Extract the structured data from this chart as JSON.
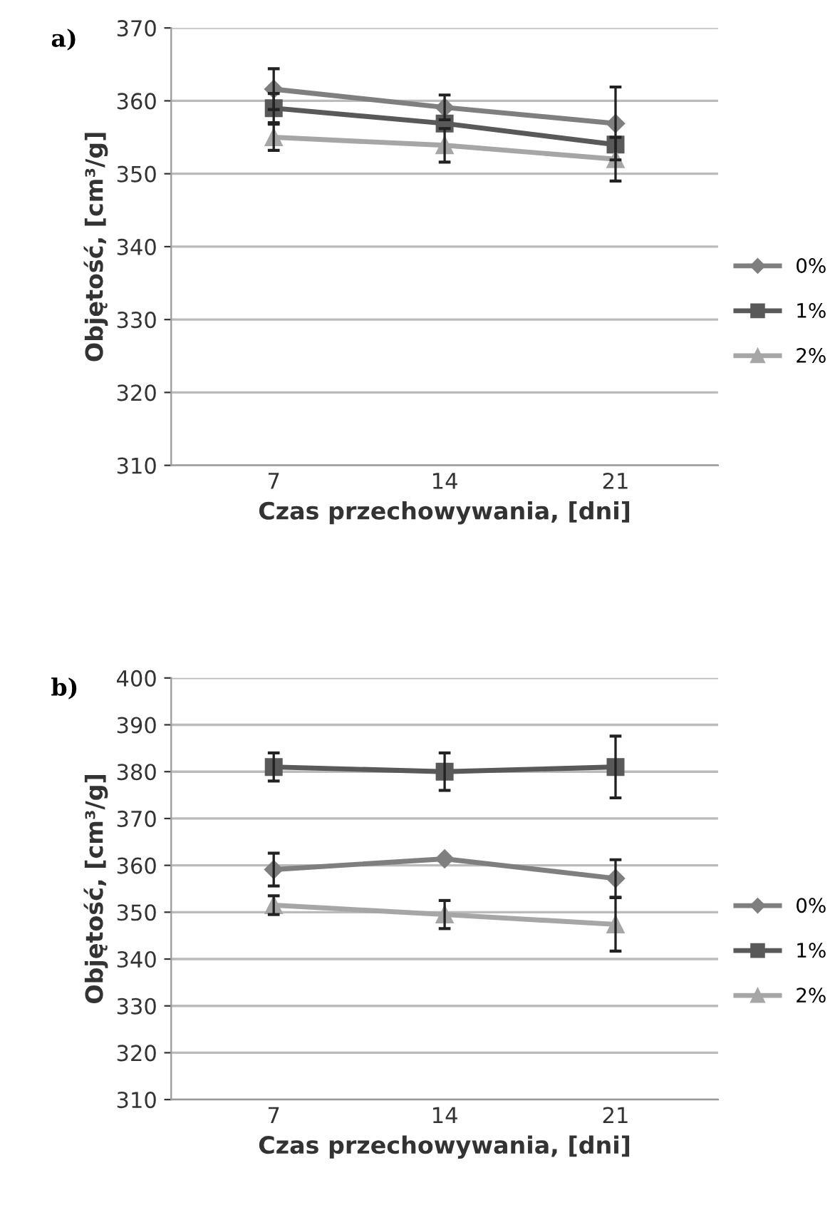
{
  "chart_data": [
    {
      "type": "line",
      "title": "a)",
      "xlabel": "Czas przechowywania, [dni]",
      "ylabel": "Objętość, [cm³/g]",
      "categories": [
        "7",
        "14",
        "21"
      ],
      "ylim": [
        310,
        370
      ],
      "yticks": [
        310,
        320,
        330,
        340,
        350,
        360,
        370
      ],
      "grid": "y",
      "legend": "right",
      "line_style": "solid",
      "series": [
        {
          "name": "0%",
          "color": "#7f7f7f",
          "marker": "diamond",
          "values": [
            361.6,
            359.1,
            356.9
          ],
          "errors": [
            2.8,
            1.7,
            5
          ]
        },
        {
          "name": "1%",
          "color": "#595959",
          "marker": "square",
          "values": [
            359,
            356.9,
            354
          ],
          "errors": [
            2,
            null,
            null
          ]
        },
        {
          "name": "2%",
          "color": "#a6a6a6",
          "marker": "triangle",
          "values": [
            355,
            353.9,
            352
          ],
          "errors": [
            1.8,
            2.3,
            3
          ]
        }
      ]
    },
    {
      "type": "line",
      "title": "b)",
      "xlabel": "Czas przechowywania, [dni]",
      "ylabel": "Objętość, [cm³/g]",
      "categories": [
        "7",
        "14",
        "21"
      ],
      "ylim": [
        310,
        400
      ],
      "yticks": [
        310,
        320,
        330,
        340,
        350,
        360,
        370,
        380,
        390,
        400
      ],
      "grid": "y",
      "legend": "right",
      "line_style": "solid",
      "series": [
        {
          "name": "0%",
          "color": "#7f7f7f",
          "marker": "diamond",
          "values": [
            359.1,
            361.4,
            357.2
          ],
          "errors": [
            3.5,
            null,
            4
          ]
        },
        {
          "name": "1%",
          "color": "#595959",
          "marker": "square",
          "values": [
            381,
            380,
            381
          ],
          "errors": [
            3,
            4,
            6.6
          ]
        },
        {
          "name": "2%",
          "color": "#a6a6a6",
          "marker": "triangle",
          "values": [
            351.5,
            349.5,
            347.4
          ],
          "errors": [
            2,
            3,
            5.7
          ]
        }
      ]
    }
  ]
}
